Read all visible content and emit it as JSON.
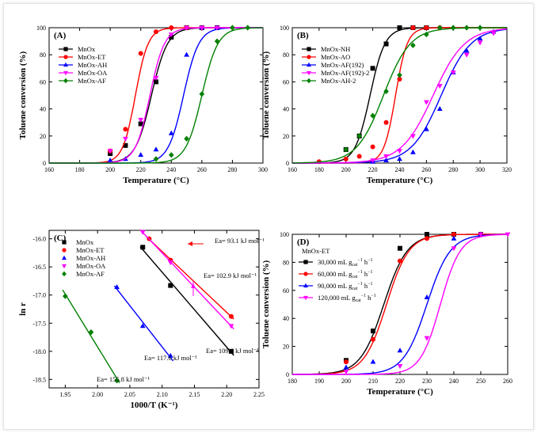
{
  "chart_data": [
    {
      "panel": "(A)",
      "type": "line",
      "xlabel": "Temperature (°C)",
      "ylabel": "Toluene conversion (%)",
      "xlim": [
        160,
        300
      ],
      "ylim": [
        0,
        100
      ],
      "xticks": [
        160,
        180,
        200,
        220,
        240,
        260,
        280,
        300
      ],
      "yticks": [
        0,
        20,
        40,
        60,
        80,
        100
      ],
      "legend": "top-left",
      "series": [
        {
          "name": "MnOx",
          "color": "#000000",
          "marker": "square",
          "x": [
            200,
            210,
            220,
            230,
            240,
            250,
            260,
            270
          ],
          "y": [
            7,
            13,
            29,
            60,
            93,
            100,
            100,
            100
          ],
          "t50": 227,
          "k": 0.19
        },
        {
          "name": "MnOx-ET",
          "color": "#ff0000",
          "marker": "circle",
          "x": [
            200,
            210,
            220,
            230,
            240,
            250,
            260
          ],
          "y": [
            9,
            25,
            81,
            97,
            100,
            100,
            100
          ],
          "t50": 216.5,
          "k": 0.24
        },
        {
          "name": "MnOx-AH",
          "color": "#0000ff",
          "marker": "triangle",
          "x": [
            200,
            210,
            220,
            230,
            240,
            250,
            260,
            270
          ],
          "y": [
            2,
            3,
            6,
            10,
            22,
            80,
            100,
            100
          ],
          "t50": 248,
          "k": 0.2
        },
        {
          "name": "MnOx-OA",
          "color": "#ff00ff",
          "marker": "triangle-down",
          "x": [
            200,
            210,
            220,
            230,
            240,
            250,
            260,
            270
          ],
          "y": [
            9,
            18,
            32,
            63,
            95,
            100,
            100,
            100
          ],
          "t50": 226,
          "k": 0.21
        },
        {
          "name": "MnOx-AF",
          "color": "#008000",
          "marker": "diamond",
          "x": [
            230,
            240,
            250,
            260,
            270,
            280,
            290
          ],
          "y": [
            3,
            6,
            18,
            51,
            90,
            100,
            100
          ],
          "t50": 260,
          "k": 0.19
        }
      ]
    },
    {
      "panel": "(B)",
      "type": "line",
      "xlabel": "Temperature (°C)",
      "ylabel": "Toluene conversion (%)",
      "xlim": [
        160,
        320
      ],
      "ylim": [
        0,
        100
      ],
      "xticks": [
        160,
        180,
        200,
        220,
        240,
        260,
        280,
        300,
        320
      ],
      "yticks": [
        0,
        20,
        40,
        60,
        80,
        100
      ],
      "legend": "top-left",
      "series": [
        {
          "name": "MnOx-NH",
          "color": "#000000",
          "marker": "square",
          "x": [
            200,
            210,
            220,
            230,
            240,
            250,
            260
          ],
          "y": [
            10,
            20,
            70,
            88,
            100,
            100,
            100
          ],
          "t50": 218,
          "k": 0.18
        },
        {
          "name": "MnOx-AO",
          "color": "#ff0000",
          "marker": "circle",
          "x": [
            180,
            200,
            210,
            220,
            230,
            240,
            250,
            260,
            270
          ],
          "y": [
            1,
            3,
            5,
            12,
            30,
            62,
            100,
            100,
            100
          ],
          "t50": 237,
          "k": 0.23
        },
        {
          "name": "MnOx-AF(192)",
          "color": "#0000ff",
          "marker": "triangle",
          "x": [
            220,
            230,
            240,
            250,
            260,
            270,
            280,
            290,
            300,
            310
          ],
          "y": [
            1,
            2,
            3,
            8,
            25,
            40,
            67,
            83,
            92,
            97
          ],
          "t50": 271,
          "k": 0.09
        },
        {
          "name": "MnOx-AF(192)-2",
          "color": "#ff00ff",
          "marker": "triangle-down",
          "x": [
            220,
            230,
            240,
            250,
            260,
            270,
            280,
            290,
            300,
            310
          ],
          "y": [
            2,
            5,
            9,
            20,
            45,
            57,
            67,
            80,
            89,
            96
          ],
          "t50": 265,
          "k": 0.085
        },
        {
          "name": "MnOx-AH-2",
          "color": "#008000",
          "marker": "diamond",
          "x": [
            200,
            210,
            220,
            230,
            240,
            250,
            260,
            270,
            280,
            290,
            300
          ],
          "y": [
            10,
            20,
            35,
            53,
            65,
            87,
            95,
            100,
            100,
            100,
            100
          ],
          "t50": 228,
          "k": 0.1
        }
      ]
    },
    {
      "panel": "(C)",
      "type": "scatter",
      "xlabel": "1000/T (K⁻¹)",
      "ylabel": "ln r",
      "xlim": [
        1.925,
        2.25
      ],
      "ylim": [
        -18.65,
        -15.85
      ],
      "xticks": [
        "1.95",
        "2.00",
        "2.05",
        "2.10",
        "2.15",
        "2.20",
        "2.25"
      ],
      "yticks": [
        "-16.0",
        "-16.5",
        "-17.0",
        "-17.5",
        "-18.0",
        "-18.5"
      ],
      "legend": "top-left",
      "series": [
        {
          "name": "MnOx",
          "color": "#000000",
          "marker": "square",
          "points": [
            [
              2.07,
              -16.15
            ],
            [
              2.113,
              -16.83
            ],
            [
              2.207,
              -18.0
            ]
          ]
        },
        {
          "name": "MnOx-ET",
          "color": "#ff0000",
          "marker": "circle",
          "points": [
            [
              2.08,
              -16.0
            ],
            [
              2.113,
              -16.38
            ],
            [
              2.207,
              -17.38
            ]
          ]
        },
        {
          "name": "MnOx-AH",
          "color": "#0000ff",
          "marker": "triangle",
          "points": [
            [
              2.03,
              -16.86
            ],
            [
              2.07,
              -17.55
            ],
            [
              2.113,
              -18.08
            ]
          ]
        },
        {
          "name": "MnOx-OA",
          "color": "#ff00ff",
          "marker": "triangle-down",
          "points": [
            [
              2.07,
              -15.88
            ],
            [
              2.113,
              -16.42
            ],
            [
              2.207,
              -17.55
            ]
          ]
        },
        {
          "name": "MnOx-AF",
          "color": "#008000",
          "marker": "diamond",
          "points": [
            [
              1.95,
              -17.02
            ],
            [
              1.99,
              -17.66
            ],
            [
              2.03,
              -18.52
            ]
          ]
        }
      ],
      "annotations": [
        {
          "text": "Ea= 93.1 kJ mol⁻¹",
          "color": "#000000"
        },
        {
          "text": "Ea= 102.9 kJ mol⁻¹",
          "color": "#000000"
        },
        {
          "text": "Ea= 109.4 kJ mol⁻¹",
          "color": "#000000"
        },
        {
          "text": "Ea= 117.6 kJ mol⁻¹",
          "color": "#000000"
        },
        {
          "text": "Ea= 155.8 kJ mol⁻¹",
          "color": "#000000"
        }
      ]
    },
    {
      "panel": "(D)",
      "type": "line",
      "xlabel": "Temperature (°C)",
      "ylabel": "Toluene conversion (%)",
      "xlim": [
        180,
        260
      ],
      "ylim": [
        0,
        100
      ],
      "xticks": [
        180,
        190,
        200,
        210,
        220,
        230,
        240,
        250,
        260
      ],
      "yticks": [
        0,
        20,
        40,
        60,
        80,
        100
      ],
      "legend": "top-left",
      "legend_title": "MnOx-ET",
      "series": [
        {
          "name": "30,000 mL g",
          "unit_sub": "cat",
          "unit_tail": " h",
          "color": "#000000",
          "marker": "square",
          "x": [
            200,
            210,
            220,
            230,
            240,
            250
          ],
          "y": [
            10,
            31,
            90,
            100,
            100,
            100
          ],
          "t50": 214,
          "k": 0.23
        },
        {
          "name": "60,000 mL g",
          "unit_sub": "cat",
          "unit_tail": " h",
          "color": "#ff0000",
          "marker": "circle",
          "x": [
            200,
            210,
            220,
            230,
            240,
            250
          ],
          "y": [
            9,
            25,
            81,
            97,
            100,
            100
          ],
          "t50": 215,
          "k": 0.24
        },
        {
          "name": "90,000 mL g",
          "unit_sub": "cat",
          "unit_tail": " h",
          "color": "#0000ff",
          "marker": "triangle",
          "x": [
            200,
            210,
            220,
            230,
            240,
            250
          ],
          "y": [
            5,
            9,
            17,
            55,
            97,
            100
          ],
          "t50": 230,
          "k": 0.23
        },
        {
          "name": "120,000 mL g",
          "unit_sub": "cat",
          "unit_tail": " h",
          "color": "#ff00ff",
          "marker": "triangle-down",
          "x": [
            200,
            220,
            230,
            240,
            250,
            260
          ],
          "y": [
            2,
            6,
            26,
            90,
            100,
            100
          ],
          "t50": 235,
          "k": 0.27
        }
      ]
    }
  ]
}
